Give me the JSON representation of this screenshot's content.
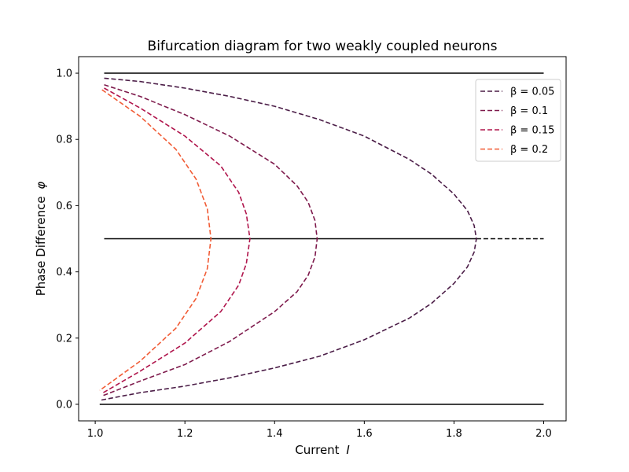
{
  "chart_data": {
    "type": "line",
    "title": "Bifurcation diagram for two weakly coupled neurons",
    "xlabel": "Current",
    "xlabel_var": "I",
    "ylabel": "Phase Difference",
    "ylabel_var": "φ",
    "xlim": [
      0.963,
      2.05
    ],
    "ylim": [
      -0.05,
      1.05
    ],
    "xticks": [
      "1.0",
      "1.2",
      "1.4",
      "1.6",
      "1.8",
      "2.0"
    ],
    "xtick_values": [
      1.0,
      1.2,
      1.4,
      1.6,
      1.8,
      2.0
    ],
    "yticks": [
      "0.0",
      "0.2",
      "0.4",
      "0.6",
      "0.8",
      "1.0"
    ],
    "ytick_values": [
      0.0,
      0.2,
      0.4,
      0.6,
      0.8,
      1.0
    ],
    "grid": false,
    "legend_position": "top-right",
    "equilibrium_lines": [
      {
        "name": "",
        "color": "#000000",
        "style": "solid",
        "x": [
          1.02,
          2.0
        ],
        "y": [
          1.0,
          1.0
        ]
      },
      {
        "name": "",
        "color": "#000000",
        "style": "solid",
        "x": [
          1.02,
          1.85
        ],
        "y": [
          0.5,
          0.5
        ]
      },
      {
        "name": "",
        "color": "#000000",
        "style": "dashed",
        "x": [
          1.85,
          2.0
        ],
        "y": [
          0.5,
          0.5
        ]
      },
      {
        "name": "",
        "color": "#000000",
        "style": "solid",
        "x": [
          1.01,
          2.0
        ],
        "y": [
          0.0,
          0.0
        ]
      }
    ],
    "series": [
      {
        "name": "β = 0.05",
        "legend_label": "β = 0.05",
        "color": "#4b1d47",
        "style": "dashed",
        "x": [
          1.02,
          1.1,
          1.2,
          1.3,
          1.4,
          1.5,
          1.6,
          1.7,
          1.75,
          1.8,
          1.83,
          1.845,
          1.85,
          1.845,
          1.83,
          1.8,
          1.75,
          1.7,
          1.6,
          1.5,
          1.4,
          1.3,
          1.2,
          1.1,
          1.01
        ],
        "y": [
          0.985,
          0.975,
          0.955,
          0.93,
          0.9,
          0.86,
          0.81,
          0.74,
          0.695,
          0.635,
          0.585,
          0.54,
          0.5,
          0.46,
          0.415,
          0.365,
          0.305,
          0.26,
          0.195,
          0.145,
          0.11,
          0.08,
          0.055,
          0.035,
          0.012
        ]
      },
      {
        "name": "β = 0.1",
        "legend_label": "β = 0.1",
        "color": "#7e1a4c",
        "style": "dashed",
        "x": [
          1.02,
          1.1,
          1.2,
          1.3,
          1.4,
          1.45,
          1.475,
          1.49,
          1.495,
          1.49,
          1.475,
          1.45,
          1.4,
          1.3,
          1.2,
          1.1,
          1.015
        ],
        "y": [
          0.965,
          0.93,
          0.875,
          0.81,
          0.725,
          0.66,
          0.61,
          0.555,
          0.5,
          0.445,
          0.39,
          0.34,
          0.28,
          0.19,
          0.12,
          0.07,
          0.025
        ]
      },
      {
        "name": "β = 0.15",
        "legend_label": "β = 0.15",
        "color": "#b0154c",
        "style": "dashed",
        "x": [
          1.02,
          1.1,
          1.2,
          1.28,
          1.32,
          1.337,
          1.345,
          1.337,
          1.32,
          1.28,
          1.2,
          1.1,
          1.015
        ],
        "y": [
          0.955,
          0.895,
          0.81,
          0.72,
          0.64,
          0.575,
          0.5,
          0.425,
          0.36,
          0.28,
          0.185,
          0.1,
          0.033
        ]
      },
      {
        "name": "β = 0.2",
        "legend_label": "β = 0.2",
        "color": "#f15c36",
        "style": "dashed",
        "x": [
          1.015,
          1.1,
          1.18,
          1.225,
          1.25,
          1.258,
          1.25,
          1.225,
          1.18,
          1.1,
          1.01
        ],
        "y": [
          0.95,
          0.87,
          0.77,
          0.68,
          0.59,
          0.5,
          0.41,
          0.32,
          0.23,
          0.13,
          0.042
        ]
      }
    ]
  }
}
